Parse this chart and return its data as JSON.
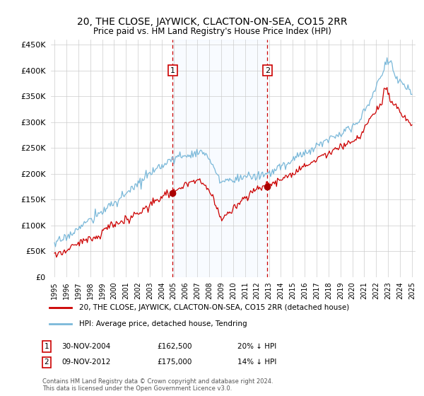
{
  "title": "20, THE CLOSE, JAYWICK, CLACTON-ON-SEA, CO15 2RR",
  "subtitle": "Price paid vs. HM Land Registry's House Price Index (HPI)",
  "yticks": [
    0,
    50000,
    100000,
    150000,
    200000,
    250000,
    300000,
    350000,
    400000,
    450000
  ],
  "ytick_labels": [
    "£0",
    "£50K",
    "£100K",
    "£150K",
    "£200K",
    "£250K",
    "£300K",
    "£350K",
    "£400K",
    "£450K"
  ],
  "xlim_start": 1994.7,
  "xlim_end": 2025.3,
  "ylim_min": 0,
  "ylim_max": 460000,
  "sale1_x": 2004.917,
  "sale1_y": 162500,
  "sale1_label": "1",
  "sale1_date": "30-NOV-2004",
  "sale1_price": "£162,500",
  "sale1_pct": "20% ↓ HPI",
  "sale2_x": 2012.867,
  "sale2_y": 175000,
  "sale2_label": "2",
  "sale2_date": "09-NOV-2012",
  "sale2_price": "£175,000",
  "sale2_pct": "14% ↓ HPI",
  "hpi_color": "#7ab8d9",
  "price_color": "#cc0000",
  "sale_marker_color": "#aa0000",
  "shaded_region_color": "#ddeeff",
  "vline_color": "#cc0000",
  "legend_label_price": "20, THE CLOSE, JAYWICK, CLACTON-ON-SEA, CO15 2RR (detached house)",
  "legend_label_hpi": "HPI: Average price, detached house, Tendring",
  "footnote": "Contains HM Land Registry data © Crown copyright and database right 2024.\nThis data is licensed under the Open Government Licence v3.0.",
  "xtick_years": [
    1995,
    1996,
    1997,
    1998,
    1999,
    2000,
    2001,
    2002,
    2003,
    2004,
    2005,
    2006,
    2007,
    2008,
    2009,
    2010,
    2011,
    2012,
    2013,
    2014,
    2015,
    2016,
    2017,
    2018,
    2019,
    2020,
    2021,
    2022,
    2023,
    2024,
    2025
  ]
}
